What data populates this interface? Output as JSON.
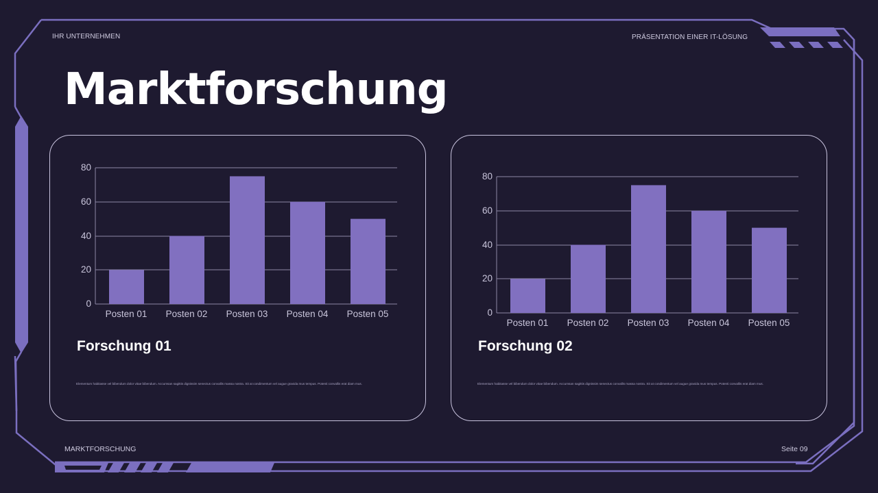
{
  "slide": {
    "company_label": "IHR UNTERNEHMEN",
    "presentation_label": "PRÄSENTATION EINER IT-LÖSUNG",
    "title": "Marktforschung",
    "footer_section": "MARKTFORSCHUNG",
    "page_label": "Seite 09"
  },
  "colors": {
    "background": "#1e1a30",
    "accent": "#7b6fc0",
    "bar": "#8170c0",
    "text": "#ffffff"
  },
  "cards": [
    {
      "title": "Forschung 01",
      "body": "Elementum habitasse vel bibendum dolor vitae bibendum. Accumsan sagittis dignissim senectus convallis massa nostra. Sit at condimentum vel augue gravida mus tempus. Potenti convallis erat diam mus."
    },
    {
      "title": "Forschung 02",
      "body": "Elementum habitasse vel bibendum dolor vitae bibendum. Accumsan sagittis dignissim senectus convallis massa nostra. Sit at condimentum vel augue gravida mus tempus. Potenti convallis erat diam mus."
    }
  ],
  "chart_data": [
    {
      "type": "bar",
      "title": "Forschung 01",
      "categories": [
        "Posten 01",
        "Posten 02",
        "Posten 03",
        "Posten 04",
        "Posten 05"
      ],
      "values": [
        20,
        40,
        75,
        60,
        50
      ],
      "xlabel": "",
      "ylabel": "",
      "ylim": [
        0,
        80
      ],
      "yticks": [
        0,
        20,
        40,
        60,
        80
      ],
      "grid": true,
      "legend": "none",
      "bar_color": "#8170c0"
    },
    {
      "type": "bar",
      "title": "Forschung 02",
      "categories": [
        "Posten 01",
        "Posten 02",
        "Posten 03",
        "Posten 04",
        "Posten 05"
      ],
      "values": [
        20,
        40,
        75,
        60,
        50
      ],
      "xlabel": "",
      "ylabel": "",
      "ylim": [
        0,
        80
      ],
      "yticks": [
        0,
        20,
        40,
        60,
        80
      ],
      "grid": true,
      "legend": "none",
      "bar_color": "#8170c0"
    }
  ]
}
